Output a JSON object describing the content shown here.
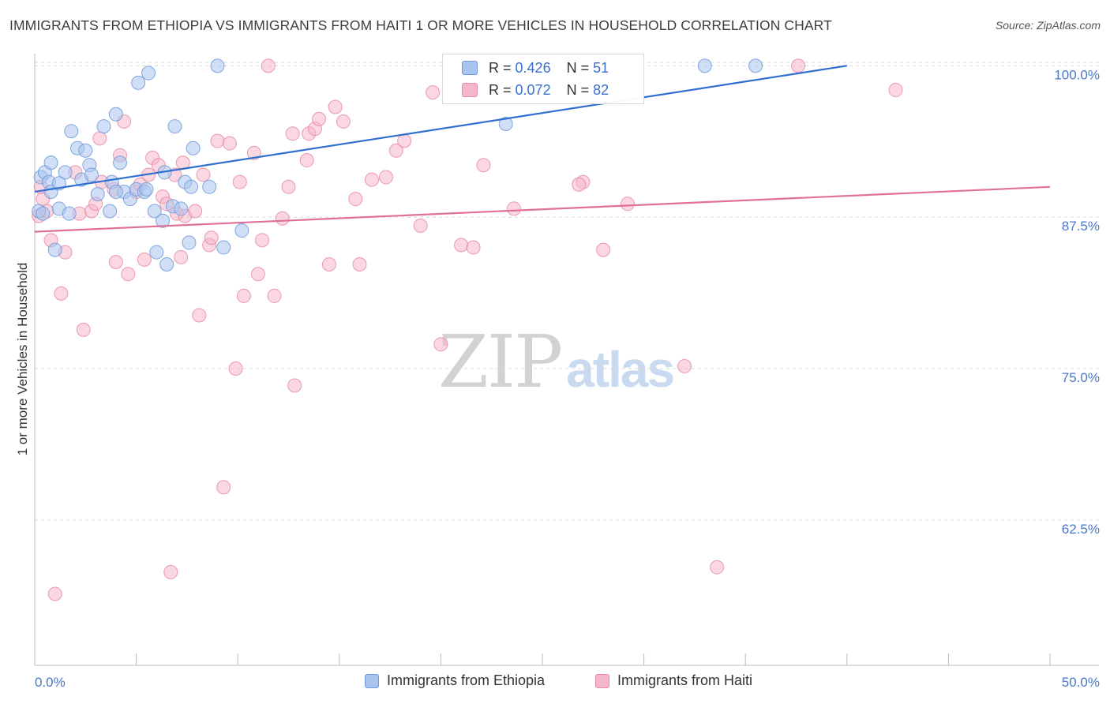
{
  "header": {
    "title": "IMMIGRANTS FROM ETHIOPIA VS IMMIGRANTS FROM HAITI 1 OR MORE VEHICLES IN HOUSEHOLD CORRELATION CHART",
    "source": "Source: ZipAtlas.com"
  },
  "watermark": {
    "zip": "ZIP",
    "atlas": "atlas"
  },
  "legend": {
    "r_label": "R =",
    "n_label": "N =",
    "rows": [
      {
        "r": "0.426",
        "n": "51"
      },
      {
        "r": "0.072",
        "n": "82"
      }
    ]
  },
  "colors": {
    "ethiopia_fill": "#a9c4ee",
    "ethiopia_stroke": "#6f99d8",
    "ethiopia_line": "#2f6fcf",
    "haiti_fill": "#f5b6c9",
    "haiti_stroke": "#e88aa8",
    "haiti_line": "#e07099",
    "axis_label": "#4a78c8",
    "grid": "#d8d8d8"
  },
  "chart_data": {
    "type": "scatter",
    "title": "IMMIGRANTS FROM ETHIOPIA VS IMMIGRANTS FROM HAITI 1 OR MORE VEHICLES IN HOUSEHOLD CORRELATION CHART",
    "xlabel": "",
    "ylabel": "1 or more Vehicles in Household",
    "xlim": [
      0,
      50
    ],
    "ylim": [
      50.5,
      101
    ],
    "x_tick_labels": [
      "0.0%",
      "50.0%"
    ],
    "y_ticks": [
      100,
      87.5,
      75,
      62.5
    ],
    "y_tick_labels": [
      "100.0%",
      "87.5%",
      "75.0%",
      "62.5%"
    ],
    "grid": true,
    "legend_position": "top-center",
    "series": [
      {
        "name": "Immigrants from Ethiopia",
        "r": 0.426,
        "n": 51,
        "trend": {
          "x": [
            0,
            40
          ],
          "y": [
            89.6,
            100.0
          ]
        },
        "points": [
          [
            0.3,
            90.8
          ],
          [
            0.5,
            91.2
          ],
          [
            0.7,
            90.4
          ],
          [
            0.8,
            89.6
          ],
          [
            1.0,
            84.8
          ],
          [
            1.2,
            88.2
          ],
          [
            1.5,
            91.2
          ],
          [
            1.7,
            87.8
          ],
          [
            1.8,
            94.6
          ],
          [
            2.1,
            93.2
          ],
          [
            2.3,
            90.6
          ],
          [
            2.5,
            93.0
          ],
          [
            2.7,
            91.8
          ],
          [
            2.8,
            91.0
          ],
          [
            3.1,
            89.4
          ],
          [
            3.4,
            95.0
          ],
          [
            3.7,
            88.0
          ],
          [
            3.8,
            90.4
          ],
          [
            4.0,
            96.0
          ],
          [
            4.2,
            92.0
          ],
          [
            4.4,
            89.6
          ],
          [
            4.7,
            89.0
          ],
          [
            5.0,
            89.8
          ],
          [
            5.1,
            98.6
          ],
          [
            5.4,
            89.6
          ],
          [
            5.5,
            89.8
          ],
          [
            5.6,
            99.4
          ],
          [
            5.9,
            88.0
          ],
          [
            6.0,
            84.6
          ],
          [
            6.3,
            87.2
          ],
          [
            6.4,
            91.2
          ],
          [
            6.5,
            83.6
          ],
          [
            6.8,
            88.4
          ],
          [
            6.9,
            95.0
          ],
          [
            7.2,
            88.2
          ],
          [
            7.4,
            90.4
          ],
          [
            7.6,
            85.4
          ],
          [
            7.7,
            90.0
          ],
          [
            7.8,
            93.2
          ],
          [
            8.6,
            90.0
          ],
          [
            9.0,
            100.0
          ],
          [
            9.3,
            85.0
          ],
          [
            10.2,
            86.4
          ],
          [
            0.2,
            88.0
          ],
          [
            0.4,
            87.8
          ],
          [
            33.0,
            100.0
          ],
          [
            35.5,
            100.0
          ],
          [
            23.2,
            95.2
          ],
          [
            1.2,
            90.3
          ],
          [
            4.0,
            89.6
          ],
          [
            0.8,
            92.0
          ]
        ]
      },
      {
        "name": "Immigrants from Haiti",
        "r": 0.072,
        "n": 82,
        "trend": {
          "x": [
            0,
            50
          ],
          "y": [
            86.3,
            90.0
          ]
        },
        "points": [
          [
            0.2,
            87.6
          ],
          [
            0.4,
            89.0
          ],
          [
            0.6,
            88.0
          ],
          [
            0.8,
            85.6
          ],
          [
            1.0,
            56.4
          ],
          [
            1.3,
            81.2
          ],
          [
            1.5,
            84.6
          ],
          [
            2.0,
            91.2
          ],
          [
            2.2,
            87.8
          ],
          [
            2.4,
            78.2
          ],
          [
            2.8,
            88.0
          ],
          [
            3.0,
            88.6
          ],
          [
            3.2,
            94.0
          ],
          [
            3.3,
            90.4
          ],
          [
            3.9,
            89.8
          ],
          [
            4.0,
            83.8
          ],
          [
            4.2,
            92.6
          ],
          [
            4.4,
            95.4
          ],
          [
            4.6,
            82.8
          ],
          [
            5.0,
            89.6
          ],
          [
            5.2,
            90.2
          ],
          [
            5.4,
            84.0
          ],
          [
            5.6,
            91.0
          ],
          [
            5.8,
            92.4
          ],
          [
            6.1,
            91.8
          ],
          [
            6.3,
            89.2
          ],
          [
            6.5,
            88.6
          ],
          [
            6.7,
            58.2
          ],
          [
            6.9,
            91.0
          ],
          [
            7.0,
            87.8
          ],
          [
            7.2,
            84.2
          ],
          [
            7.3,
            92.0
          ],
          [
            7.4,
            87.6
          ],
          [
            7.9,
            88.0
          ],
          [
            8.1,
            79.4
          ],
          [
            8.3,
            91.0
          ],
          [
            8.6,
            85.2
          ],
          [
            8.7,
            85.8
          ],
          [
            9.0,
            93.8
          ],
          [
            9.3,
            65.2
          ],
          [
            9.6,
            93.6
          ],
          [
            9.9,
            75.0
          ],
          [
            10.1,
            90.4
          ],
          [
            10.3,
            81.0
          ],
          [
            10.8,
            92.8
          ],
          [
            11.0,
            82.8
          ],
          [
            11.2,
            85.6
          ],
          [
            11.5,
            100.0
          ],
          [
            11.8,
            81.0
          ],
          [
            12.2,
            87.4
          ],
          [
            12.5,
            90.0
          ],
          [
            12.7,
            94.4
          ],
          [
            12.8,
            73.6
          ],
          [
            13.4,
            92.2
          ],
          [
            13.5,
            94.4
          ],
          [
            13.8,
            94.8
          ],
          [
            14.0,
            95.6
          ],
          [
            14.5,
            83.6
          ],
          [
            14.8,
            96.6
          ],
          [
            15.2,
            95.4
          ],
          [
            15.8,
            89.0
          ],
          [
            16.0,
            83.6
          ],
          [
            16.6,
            90.6
          ],
          [
            17.3,
            90.8
          ],
          [
            17.8,
            93.0
          ],
          [
            18.2,
            93.8
          ],
          [
            19.0,
            86.8
          ],
          [
            19.6,
            97.8
          ],
          [
            20.0,
            77.0
          ],
          [
            21.0,
            85.2
          ],
          [
            21.6,
            85.0
          ],
          [
            22.1,
            91.8
          ],
          [
            23.6,
            88.2
          ],
          [
            27.0,
            90.4
          ],
          [
            28.0,
            84.8
          ],
          [
            29.2,
            88.6
          ],
          [
            32.0,
            75.2
          ],
          [
            33.6,
            58.6
          ],
          [
            37.6,
            100.0
          ],
          [
            42.4,
            98.0
          ],
          [
            0.3,
            90.0
          ],
          [
            26.8,
            90.2
          ]
        ]
      }
    ]
  }
}
